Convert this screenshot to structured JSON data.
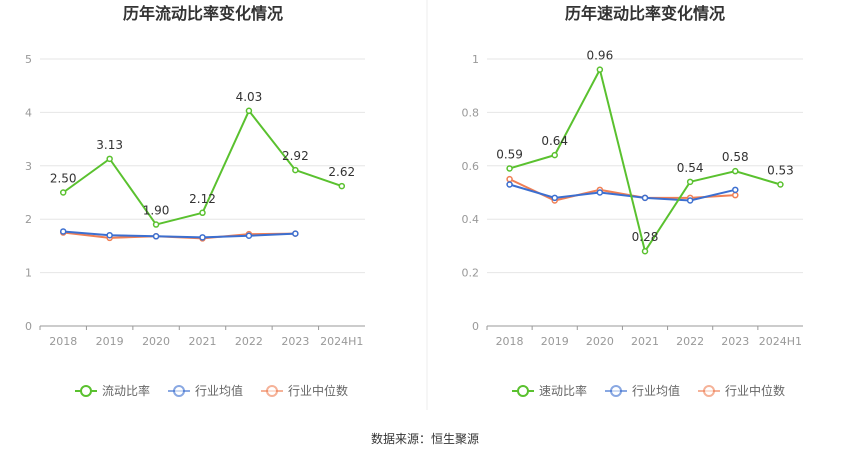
{
  "chart_data": [
    {
      "type": "line",
      "title": "历年流动比率变化情况",
      "categories": [
        "2018",
        "2019",
        "2020",
        "2021",
        "2022",
        "2023",
        "2024H1"
      ],
      "ylim": [
        0,
        5
      ],
      "yticks": [
        "0",
        "1",
        "2",
        "3",
        "4",
        "5"
      ],
      "grid": true,
      "legend_placement": "bottom",
      "series": [
        {
          "name": "流动比率",
          "color": "#5ac12f",
          "values": [
            2.5,
            3.13,
            1.9,
            2.12,
            4.03,
            2.92,
            2.62
          ],
          "labels": [
            "2.50",
            "3.13",
            "1.90",
            "2.12",
            "4.03",
            "2.92",
            "2.62"
          ]
        },
        {
          "name": "行业均值",
          "color": "#3c6fd0",
          "values": [
            1.77,
            1.7,
            1.68,
            1.66,
            1.69,
            1.73,
            null
          ]
        },
        {
          "name": "行业中位数",
          "color": "#f07f54",
          "values": [
            1.75,
            1.65,
            1.68,
            1.64,
            1.72,
            1.73,
            null
          ]
        }
      ]
    },
    {
      "type": "line",
      "title": "历年速动比率变化情况",
      "categories": [
        "2018",
        "2019",
        "2020",
        "2021",
        "2022",
        "2023",
        "2024H1"
      ],
      "ylim": [
        0,
        1
      ],
      "yticks": [
        "0",
        "0.2",
        "0.4",
        "0.6",
        "0.8",
        "1"
      ],
      "grid": true,
      "legend_placement": "bottom",
      "series": [
        {
          "name": "速动比率",
          "color": "#5ac12f",
          "values": [
            0.59,
            0.64,
            0.96,
            0.28,
            0.54,
            0.58,
            0.53
          ],
          "labels": [
            "0.59",
            "0.64",
            "0.96",
            "0.28",
            "0.54",
            "0.58",
            "0.53"
          ]
        },
        {
          "name": "行业均值",
          "color": "#3c6fd0",
          "values": [
            0.53,
            0.48,
            0.5,
            0.48,
            0.47,
            0.51,
            null
          ]
        },
        {
          "name": "行业中位数",
          "color": "#f07f54",
          "values": [
            0.55,
            0.47,
            0.51,
            0.48,
            0.48,
            0.49,
            null
          ]
        }
      ]
    }
  ],
  "footer": "数据来源：恒生聚源"
}
